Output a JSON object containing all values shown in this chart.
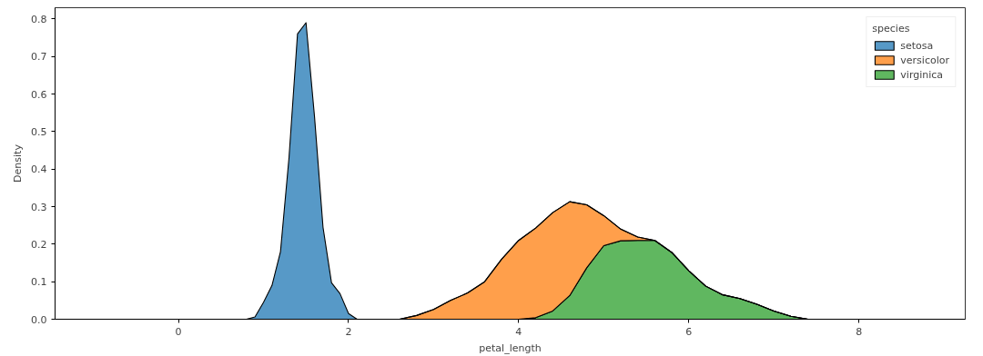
{
  "chart_data": {
    "type": "area",
    "stacked": true,
    "xlabel": "petal_length",
    "ylabel": "Density",
    "legend_title": "species",
    "legend": "top right",
    "grid": false,
    "x": [
      -1.0,
      0.8,
      0.9,
      1.0,
      1.1,
      1.2,
      1.3,
      1.4,
      1.5,
      1.6,
      1.7,
      1.8,
      1.9,
      2.0,
      2.1,
      2.2,
      2.4,
      2.6,
      2.8,
      3.0,
      3.2,
      3.4,
      3.6,
      3.8,
      4.0,
      4.2,
      4.4,
      4.6,
      4.8,
      5.0,
      5.2,
      5.4,
      5.6,
      5.8,
      6.0,
      6.2,
      6.4,
      6.6,
      6.8,
      7.0,
      7.2,
      7.4,
      7.6,
      8.8
    ],
    "series": [
      {
        "name": "virginica",
        "color": "#60b760",
        "values": [
          0,
          0,
          0,
          0,
          0,
          0,
          0,
          0,
          0,
          0,
          0,
          0,
          0,
          0,
          0,
          0,
          0,
          0,
          0,
          0,
          0,
          0,
          0,
          0,
          0,
          0.004,
          0.022,
          0.063,
          0.137,
          0.196,
          0.209,
          0.21,
          0.21,
          0.178,
          0.129,
          0.088,
          0.065,
          0.055,
          0.04,
          0.022,
          0.008,
          0,
          0,
          0
        ]
      },
      {
        "name": "versicolor",
        "color": "#ff9f4b",
        "values": [
          0,
          0,
          0,
          0,
          0,
          0,
          0,
          0,
          0,
          0,
          0,
          0,
          0,
          0,
          0,
          0,
          0,
          0,
          0.01,
          0.026,
          0.05,
          0.07,
          0.1,
          0.16,
          0.21,
          0.239,
          0.262,
          0.25,
          0.168,
          0.08,
          0.031,
          0.009,
          0,
          0,
          0,
          0,
          0,
          0,
          0,
          0,
          0,
          0,
          0,
          0
        ]
      },
      {
        "name": "setosa",
        "color": "#5799c7",
        "values": [
          0,
          0,
          0.006,
          0.045,
          0.09,
          0.18,
          0.43,
          0.76,
          0.79,
          0.54,
          0.245,
          0.097,
          0.068,
          0.015,
          0,
          0,
          0,
          0,
          0,
          0,
          0,
          0,
          0,
          0,
          0,
          0,
          0,
          0,
          0,
          0,
          0,
          0,
          0,
          0,
          0,
          0,
          0,
          0,
          0,
          0,
          0,
          0,
          0,
          0
        ]
      }
    ],
    "xlim": [
      -1.45,
      9.25
    ],
    "ylim": [
      0,
      0.83
    ],
    "xticks": [
      0,
      2,
      4,
      6,
      8
    ],
    "yticks": [
      {
        "value": 0,
        "label": "0.0"
      },
      {
        "value": 0.1,
        "label": "0.1"
      },
      {
        "value": 0.2,
        "label": "0.2"
      },
      {
        "value": 0.3,
        "label": "0.3"
      },
      {
        "value": 0.4,
        "label": "0.4"
      },
      {
        "value": 0.5,
        "label": "0.5"
      },
      {
        "value": 0.6,
        "label": "0.6"
      },
      {
        "value": 0.7,
        "label": "0.7"
      },
      {
        "value": 0.8,
        "label": "0.8"
      }
    ]
  }
}
